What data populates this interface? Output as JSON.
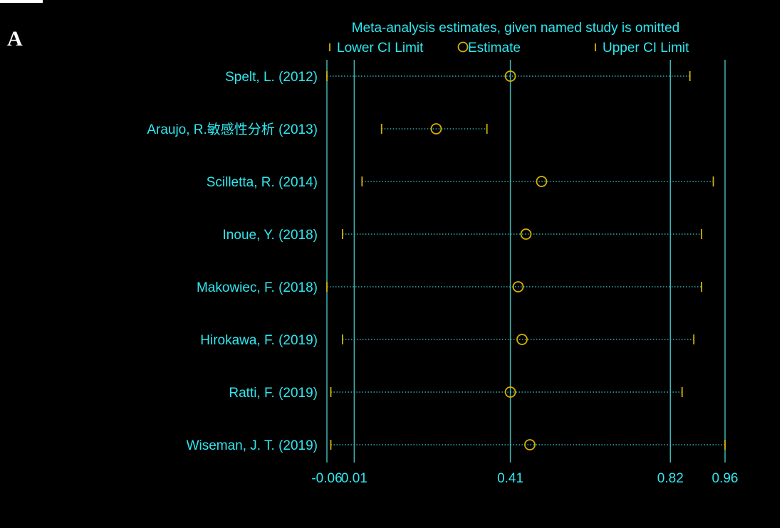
{
  "panel_label": "A",
  "colors": {
    "background": "#000000",
    "text": "#2fe7ef",
    "axis_line": "#3fb6b4",
    "markers": "#d4b100",
    "dotted_line": "#3ad3d8"
  },
  "chart_data": {
    "type": "forest",
    "title": "Meta-analysis estimates, given named study is omitted",
    "legend": [
      {
        "label": "Lower CI Limit",
        "symbol": "tick"
      },
      {
        "label": "Estimate",
        "symbol": "circle"
      },
      {
        "label": "Upper CI Limit",
        "symbol": "tick"
      }
    ],
    "xlim": [
      -0.06,
      0.96
    ],
    "x_ticks": [
      {
        "label": "-0.06",
        "value": -0.06
      },
      {
        "label": "0.01",
        "value": 0.01
      },
      {
        "label": "0.41",
        "value": 0.41
      },
      {
        "label": "0.82",
        "value": 0.82
      },
      {
        "label": "0.96",
        "value": 0.96
      }
    ],
    "reference_lines": [
      -0.06,
      0.01,
      0.41,
      0.82,
      0.96
    ],
    "studies": [
      {
        "name": "Spelt, L. (2012)",
        "lower": -0.06,
        "estimate": 0.41,
        "upper": 0.87
      },
      {
        "name": "Araujo, R.敏感性分析 (2013)",
        "lower": 0.08,
        "estimate": 0.22,
        "upper": 0.35
      },
      {
        "name": "Scilletta, R. (2014)",
        "lower": 0.03,
        "estimate": 0.49,
        "upper": 0.93
      },
      {
        "name": "Inoue, Y. (2018)",
        "lower": -0.02,
        "estimate": 0.45,
        "upper": 0.9
      },
      {
        "name": "Makowiec, F. (2018)",
        "lower": -0.06,
        "estimate": 0.43,
        "upper": 0.9
      },
      {
        "name": "Hirokawa, F. (2019)",
        "lower": -0.02,
        "estimate": 0.44,
        "upper": 0.88
      },
      {
        "name": "Ratti, F. (2019)",
        "lower": -0.05,
        "estimate": 0.41,
        "upper": 0.85
      },
      {
        "name": "Wiseman, J. T. (2019)",
        "lower": -0.05,
        "estimate": 0.46,
        "upper": 0.96
      }
    ]
  }
}
